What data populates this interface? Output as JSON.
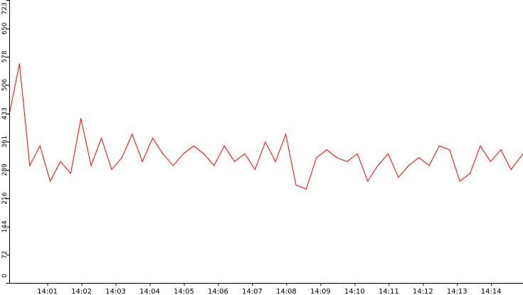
{
  "chart_data": {
    "type": "line",
    "title": "",
    "xlabel": "",
    "ylabel": "",
    "ylim": [
      0,
      723
    ],
    "xlim": [
      "13:59:53",
      "14:14:56"
    ],
    "grid": false,
    "legend": "none",
    "colors": {
      "series": "#ff0000",
      "axis": "#000000",
      "background": "#ffffff"
    },
    "y_ticks": [
      "0",
      "72",
      "144",
      "216",
      "289",
      "361",
      "433",
      "506",
      "578",
      "650",
      "723"
    ],
    "x_ticks": [
      "14:01",
      "14:02",
      "14:03",
      "14:04",
      "14:05",
      "14:06",
      "14:07",
      "14:08",
      "14:09",
      "14:10",
      "14:11",
      "14:12",
      "14:13",
      "14:14"
    ],
    "series": [
      {
        "x": [
          "13:59:53",
          "14:00:11",
          "14:00:29",
          "14:00:47",
          "14:01:05",
          "14:01:23",
          "14:01:41",
          "14:01:59",
          "14:02:17",
          "14:02:35",
          "14:02:53",
          "14:03:11",
          "14:03:29",
          "14:03:47",
          "14:04:05",
          "14:04:23",
          "14:04:41",
          "14:04:59",
          "14:05:17",
          "14:05:35",
          "14:05:53",
          "14:06:11",
          "14:06:29",
          "14:06:47",
          "14:07:05",
          "14:07:23",
          "14:07:41",
          "14:07:59",
          "14:08:17",
          "14:08:35",
          "14:08:53",
          "14:09:11",
          "14:09:29",
          "14:09:47",
          "14:10:05",
          "14:10:23",
          "14:10:41",
          "14:10:59",
          "14:11:17",
          "14:11:35",
          "14:11:53",
          "14:12:11",
          "14:12:29",
          "14:12:47",
          "14:13:05",
          "14:13:23",
          "14:13:41",
          "14:13:59",
          "14:14:17",
          "14:14:35",
          "14:14:56"
        ],
        "values": [
          430,
          560,
          300,
          350,
          260,
          310,
          280,
          420,
          300,
          370,
          290,
          320,
          380,
          310,
          370,
          330,
          300,
          330,
          350,
          330,
          300,
          350,
          310,
          330,
          290,
          360,
          310,
          380,
          250,
          240,
          320,
          340,
          320,
          310,
          330,
          260,
          300,
          330,
          270,
          300,
          320,
          300,
          350,
          340,
          260,
          280,
          350,
          310,
          340,
          290,
          330
        ]
      }
    ]
  }
}
